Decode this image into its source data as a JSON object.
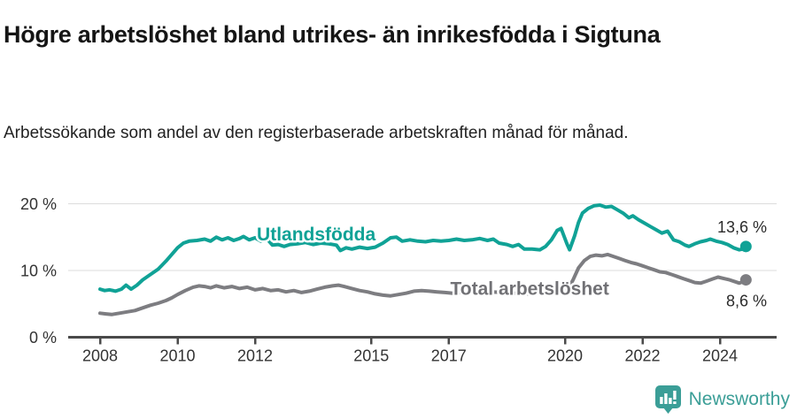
{
  "header": {
    "title": "Högre arbetslöshet bland utrikes- än inrikesfödda i Sigtuna",
    "subtitle": "Arbetssökande som andel av den registerbaserade arbetskraften månad för månad."
  },
  "chart_data": {
    "type": "line",
    "title": "",
    "xlabel": "",
    "ylabel": "Arbetssökande som andel av den registerbaserade arbetskraften",
    "x_unit": "year (monthly data)",
    "xlim": [
      2007.2,
      2025.5
    ],
    "ylim": [
      0,
      21
    ],
    "grid": "horizontal",
    "y_ticks": [
      {
        "value": 0,
        "label": "0 %"
      },
      {
        "value": 10,
        "label": "10 %"
      },
      {
        "value": 20,
        "label": "20 %"
      }
    ],
    "x_ticks": [
      {
        "value": 2008,
        "label": "2008"
      },
      {
        "value": 2010,
        "label": "2010"
      },
      {
        "value": 2012,
        "label": "2012"
      },
      {
        "value": 2015,
        "label": "2015"
      },
      {
        "value": 2017,
        "label": "2017"
      },
      {
        "value": 2020,
        "label": "2020"
      },
      {
        "value": 2022,
        "label": "2022"
      },
      {
        "value": 2024,
        "label": "2024"
      }
    ],
    "series": [
      {
        "name": "Utlandsfödda",
        "color": "#10a296",
        "end_label": "13,6 %",
        "end_value": 13.6,
        "end_label_position": "above",
        "label_pos": {
          "year": 2013.58,
          "value": 15.4
        },
        "points": [
          [
            2008.0,
            7.2
          ],
          [
            2008.12,
            7.0
          ],
          [
            2008.25,
            7.1
          ],
          [
            2008.4,
            6.9
          ],
          [
            2008.55,
            7.2
          ],
          [
            2008.67,
            7.8
          ],
          [
            2008.8,
            7.2
          ],
          [
            2008.95,
            7.8
          ],
          [
            2009.1,
            8.6
          ],
          [
            2009.3,
            9.4
          ],
          [
            2009.5,
            10.2
          ],
          [
            2009.7,
            11.4
          ],
          [
            2009.85,
            12.4
          ],
          [
            2010.0,
            13.4
          ],
          [
            2010.15,
            14.1
          ],
          [
            2010.3,
            14.4
          ],
          [
            2010.5,
            14.5
          ],
          [
            2010.7,
            14.7
          ],
          [
            2010.85,
            14.4
          ],
          [
            2011.0,
            15.0
          ],
          [
            2011.15,
            14.6
          ],
          [
            2011.3,
            14.9
          ],
          [
            2011.45,
            14.5
          ],
          [
            2011.6,
            14.8
          ],
          [
            2011.7,
            15.1
          ],
          [
            2011.85,
            14.6
          ],
          [
            2012.0,
            14.9
          ],
          [
            2012.15,
            14.4
          ],
          [
            2012.3,
            14.8
          ],
          [
            2012.45,
            13.8
          ],
          [
            2012.6,
            13.9
          ],
          [
            2012.75,
            13.6
          ],
          [
            2012.9,
            13.9
          ],
          [
            2013.1,
            14.0
          ],
          [
            2013.3,
            14.2
          ],
          [
            2013.5,
            13.9
          ],
          [
            2013.7,
            14.1
          ],
          [
            2013.9,
            14.0
          ],
          [
            2014.1,
            13.8
          ],
          [
            2014.2,
            13.0
          ],
          [
            2014.35,
            13.4
          ],
          [
            2014.5,
            13.2
          ],
          [
            2014.7,
            13.5
          ],
          [
            2014.9,
            13.3
          ],
          [
            2015.1,
            13.5
          ],
          [
            2015.3,
            14.1
          ],
          [
            2015.5,
            14.9
          ],
          [
            2015.65,
            15.0
          ],
          [
            2015.8,
            14.4
          ],
          [
            2016.0,
            14.6
          ],
          [
            2016.2,
            14.4
          ],
          [
            2016.4,
            14.3
          ],
          [
            2016.6,
            14.5
          ],
          [
            2016.8,
            14.4
          ],
          [
            2017.0,
            14.5
          ],
          [
            2017.2,
            14.7
          ],
          [
            2017.4,
            14.5
          ],
          [
            2017.6,
            14.6
          ],
          [
            2017.8,
            14.8
          ],
          [
            2018.0,
            14.5
          ],
          [
            2018.15,
            14.7
          ],
          [
            2018.3,
            14.1
          ],
          [
            2018.5,
            13.9
          ],
          [
            2018.65,
            13.6
          ],
          [
            2018.8,
            13.9
          ],
          [
            2018.95,
            13.2
          ],
          [
            2019.15,
            13.2
          ],
          [
            2019.35,
            13.1
          ],
          [
            2019.5,
            13.6
          ],
          [
            2019.65,
            14.6
          ],
          [
            2019.8,
            16.0
          ],
          [
            2019.9,
            16.3
          ],
          [
            2020.05,
            14.0
          ],
          [
            2020.12,
            13.1
          ],
          [
            2020.25,
            15.2
          ],
          [
            2020.35,
            17.2
          ],
          [
            2020.45,
            18.6
          ],
          [
            2020.6,
            19.3
          ],
          [
            2020.75,
            19.7
          ],
          [
            2020.9,
            19.8
          ],
          [
            2021.05,
            19.5
          ],
          [
            2021.2,
            19.6
          ],
          [
            2021.35,
            19.1
          ],
          [
            2021.5,
            18.6
          ],
          [
            2021.65,
            17.9
          ],
          [
            2021.75,
            18.2
          ],
          [
            2021.9,
            17.6
          ],
          [
            2022.05,
            17.1
          ],
          [
            2022.2,
            16.6
          ],
          [
            2022.35,
            16.1
          ],
          [
            2022.5,
            15.6
          ],
          [
            2022.65,
            15.9
          ],
          [
            2022.8,
            14.6
          ],
          [
            2022.95,
            14.3
          ],
          [
            2023.1,
            13.8
          ],
          [
            2023.2,
            13.6
          ],
          [
            2023.35,
            14.0
          ],
          [
            2023.5,
            14.3
          ],
          [
            2023.65,
            14.5
          ],
          [
            2023.75,
            14.7
          ],
          [
            2023.9,
            14.4
          ],
          [
            2024.05,
            14.2
          ],
          [
            2024.2,
            13.9
          ],
          [
            2024.35,
            13.4
          ],
          [
            2024.5,
            13.1
          ],
          [
            2024.58,
            13.2
          ],
          [
            2024.67,
            13.6
          ]
        ]
      },
      {
        "name": "Total arbetslöshet",
        "color": "#7d7d81",
        "label_color": "#717175",
        "end_label": "8,6 %",
        "end_value": 8.6,
        "end_label_position": "below",
        "label_pos": {
          "year": 2019.09,
          "value": 7.3
        },
        "points": [
          [
            2008.0,
            3.6
          ],
          [
            2008.15,
            3.5
          ],
          [
            2008.3,
            3.4
          ],
          [
            2008.5,
            3.6
          ],
          [
            2008.7,
            3.8
          ],
          [
            2008.9,
            4.0
          ],
          [
            2009.1,
            4.4
          ],
          [
            2009.3,
            4.8
          ],
          [
            2009.5,
            5.1
          ],
          [
            2009.7,
            5.5
          ],
          [
            2009.85,
            5.9
          ],
          [
            2010.0,
            6.4
          ],
          [
            2010.2,
            7.0
          ],
          [
            2010.4,
            7.5
          ],
          [
            2010.55,
            7.7
          ],
          [
            2010.7,
            7.6
          ],
          [
            2010.85,
            7.4
          ],
          [
            2011.0,
            7.7
          ],
          [
            2011.2,
            7.4
          ],
          [
            2011.4,
            7.6
          ],
          [
            2011.6,
            7.3
          ],
          [
            2011.8,
            7.5
          ],
          [
            2012.0,
            7.1
          ],
          [
            2012.2,
            7.3
          ],
          [
            2012.4,
            7.0
          ],
          [
            2012.6,
            7.1
          ],
          [
            2012.8,
            6.8
          ],
          [
            2013.0,
            7.0
          ],
          [
            2013.2,
            6.7
          ],
          [
            2013.4,
            6.9
          ],
          [
            2013.6,
            7.2
          ],
          [
            2013.8,
            7.5
          ],
          [
            2014.0,
            7.7
          ],
          [
            2014.15,
            7.8
          ],
          [
            2014.3,
            7.6
          ],
          [
            2014.5,
            7.3
          ],
          [
            2014.7,
            7.0
          ],
          [
            2014.9,
            6.8
          ],
          [
            2015.1,
            6.5
          ],
          [
            2015.3,
            6.3
          ],
          [
            2015.5,
            6.2
          ],
          [
            2015.7,
            6.4
          ],
          [
            2015.9,
            6.6
          ],
          [
            2016.1,
            6.9
          ],
          [
            2016.3,
            7.0
          ],
          [
            2016.5,
            6.9
          ],
          [
            2016.7,
            6.8
          ],
          [
            2016.9,
            6.7
          ],
          [
            2017.1,
            6.6
          ],
          [
            2017.3,
            6.7
          ],
          [
            2017.6,
            6.8
          ],
          [
            2017.9,
            6.9
          ],
          [
            2018.1,
            6.8
          ],
          [
            2018.4,
            6.7
          ],
          [
            2018.7,
            6.6
          ],
          [
            2019.0,
            6.5
          ],
          [
            2019.3,
            6.6
          ],
          [
            2019.6,
            6.7
          ],
          [
            2019.9,
            6.9
          ],
          [
            2020.05,
            7.0
          ],
          [
            2020.2,
            8.5
          ],
          [
            2020.35,
            10.4
          ],
          [
            2020.5,
            11.5
          ],
          [
            2020.65,
            12.1
          ],
          [
            2020.8,
            12.3
          ],
          [
            2020.95,
            12.2
          ],
          [
            2021.1,
            12.4
          ],
          [
            2021.25,
            12.1
          ],
          [
            2021.4,
            11.8
          ],
          [
            2021.55,
            11.5
          ],
          [
            2021.7,
            11.2
          ],
          [
            2021.85,
            11.0
          ],
          [
            2022.0,
            10.7
          ],
          [
            2022.15,
            10.4
          ],
          [
            2022.3,
            10.1
          ],
          [
            2022.45,
            9.8
          ],
          [
            2022.6,
            9.7
          ],
          [
            2022.75,
            9.4
          ],
          [
            2022.9,
            9.1
          ],
          [
            2023.05,
            8.8
          ],
          [
            2023.2,
            8.5
          ],
          [
            2023.35,
            8.2
          ],
          [
            2023.5,
            8.1
          ],
          [
            2023.65,
            8.4
          ],
          [
            2023.8,
            8.7
          ],
          [
            2023.95,
            9.0
          ],
          [
            2024.1,
            8.8
          ],
          [
            2024.25,
            8.6
          ],
          [
            2024.4,
            8.3
          ],
          [
            2024.5,
            8.1
          ],
          [
            2024.58,
            8.3
          ],
          [
            2024.67,
            8.6
          ]
        ]
      }
    ],
    "legend_position": "inline-labels"
  },
  "footer": {
    "brand": "Newsworthy",
    "brand_color": "#3b9e97",
    "logo_icon": "newsworthy-chart-bubble-icon"
  },
  "style_colors": {
    "grid": "#dcdcdc",
    "axis": "#4a4a4a",
    "tick_text": "#333333"
  }
}
